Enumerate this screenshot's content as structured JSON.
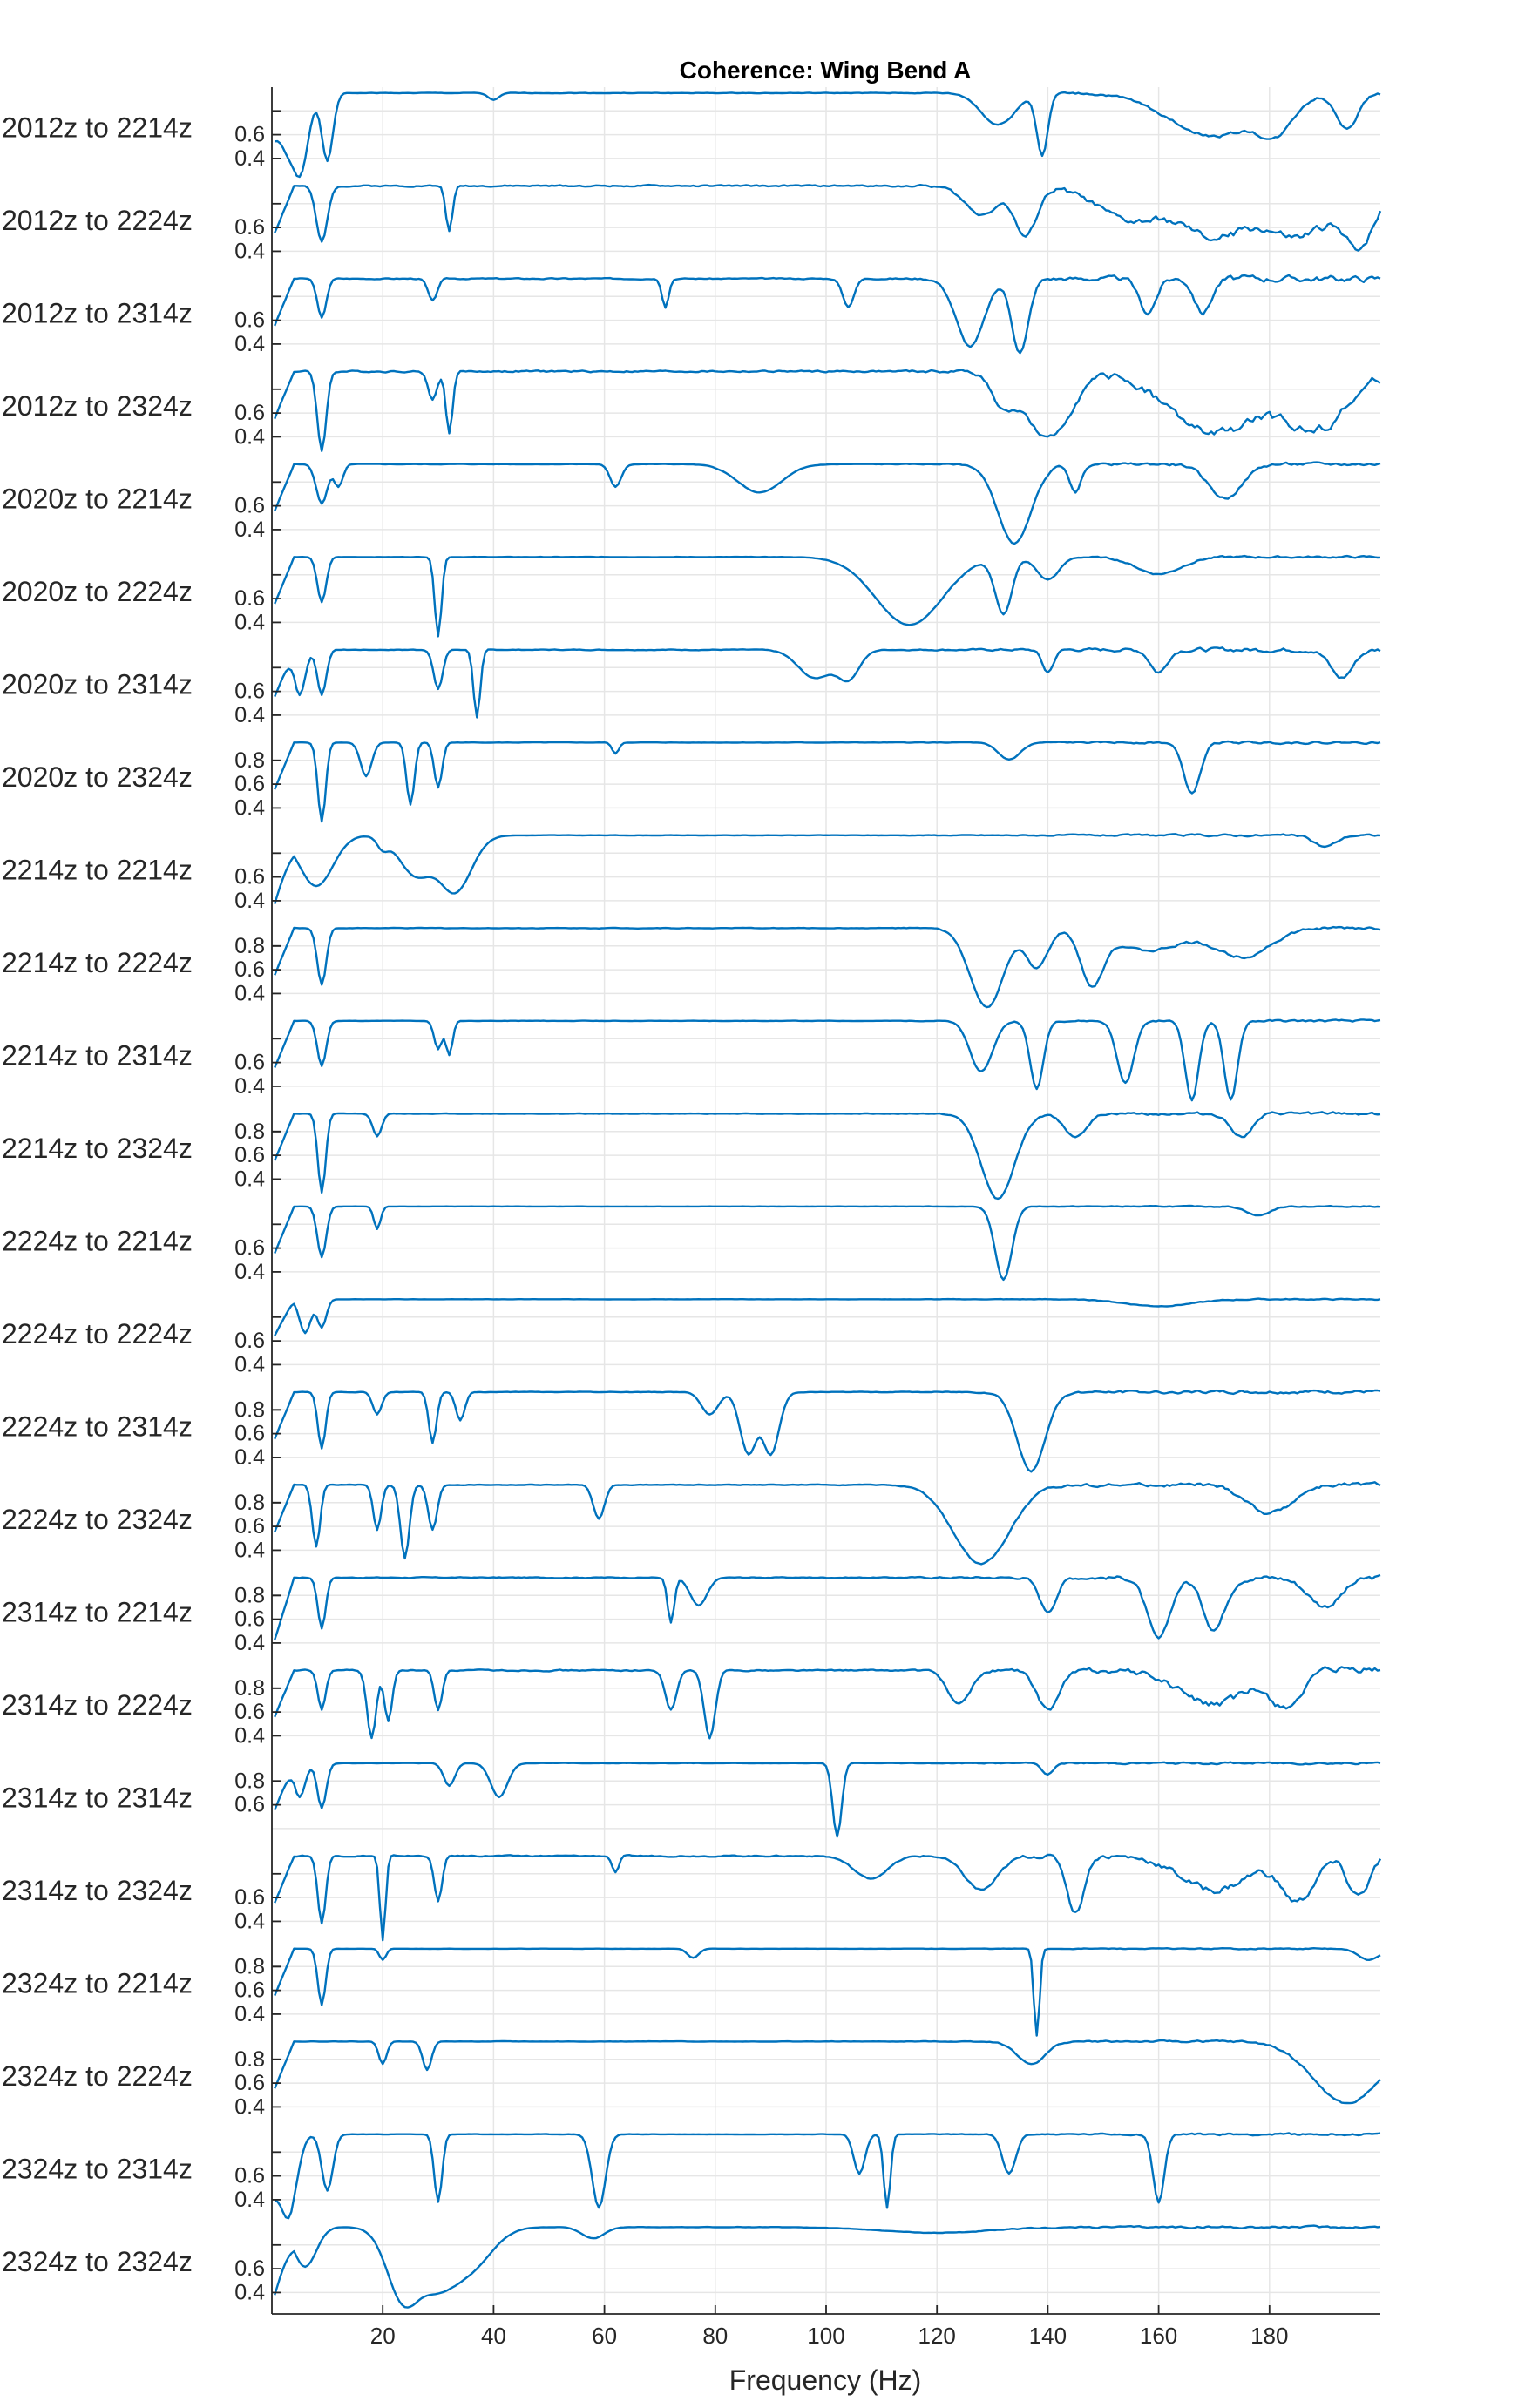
{
  "chart_data": {
    "type": "line",
    "title": "Coherence: Wing Bend A",
    "xlabel": "Frequency (Hz)",
    "xlim": [
      0,
      200
    ],
    "xticks": [
      20,
      40,
      60,
      80,
      100,
      120,
      140,
      160,
      180
    ],
    "grid": true,
    "color": "#0072bd",
    "series": [
      {
        "name": "2012z to 2214z",
        "ylim": [
          0.22,
          1
        ],
        "yticks": [
          0.4,
          0.6
        ],
        "base": 0.95,
        "lowEnd": 0.55,
        "dips": [
          [
            3,
            0.35,
            1.5
          ],
          [
            5,
            0.7,
            1.5
          ],
          [
            10,
            0.6,
            1
          ],
          [
            40,
            0.06,
            1
          ],
          [
            131,
            0.28,
            3
          ],
          [
            139,
            0.55,
            1
          ],
          [
            170,
            0.38,
            8
          ],
          [
            181,
            0.3,
            3
          ],
          [
            194,
            0.3,
            2
          ]
        ],
        "noise": 0.03
      },
      {
        "name": "2012z to 2224z",
        "ylim": [
          0.22,
          1
        ],
        "yticks": [
          0.4,
          0.6
        ],
        "base": 0.95,
        "lowEnd": 0.5,
        "dips": [
          [
            9,
            0.5,
            1
          ],
          [
            32,
            0.4,
            0.6
          ],
          [
            128,
            0.25,
            3
          ],
          [
            136,
            0.45,
            2
          ],
          [
            155,
            0.3,
            6
          ],
          [
            170,
            0.45,
            6
          ],
          [
            185,
            0.45,
            6
          ],
          [
            196,
            0.5,
            3
          ]
        ],
        "noise": 0.08
      },
      {
        "name": "2012z to 2314z",
        "ylim": [
          0.22,
          1
        ],
        "yticks": [
          0.4,
          0.6
        ],
        "base": 0.95,
        "lowEnd": 0.5,
        "dips": [
          [
            9,
            0.35,
            0.8
          ],
          [
            29,
            0.2,
            0.8
          ],
          [
            71,
            0.25,
            0.6
          ],
          [
            104,
            0.25,
            1
          ],
          [
            126,
            0.6,
            2.5
          ],
          [
            135,
            0.65,
            1.5
          ],
          [
            158,
            0.3,
            1.5
          ],
          [
            168,
            0.3,
            1.5
          ]
        ],
        "noise": 0.06
      },
      {
        "name": "2012z to 2324z",
        "ylim": [
          0.22,
          1
        ],
        "yticks": [
          0.4,
          0.6
        ],
        "base": 0.95,
        "lowEnd": 0.5,
        "dips": [
          [
            9,
            0.7,
            0.8
          ],
          [
            29,
            0.25,
            0.8
          ],
          [
            32,
            0.55,
            0.6
          ],
          [
            132,
            0.3,
            2
          ],
          [
            140,
            0.6,
            4
          ],
          [
            170,
            0.55,
            8
          ],
          [
            188,
            0.5,
            6
          ]
        ],
        "noise": 0.09
      },
      {
        "name": "2020z to 2214z",
        "ylim": [
          0.22,
          1
        ],
        "yticks": [
          0.4,
          0.6
        ],
        "base": 0.95,
        "lowEnd": 0.5,
        "dips": [
          [
            9,
            0.35,
            1
          ],
          [
            12,
            0.2,
            0.8
          ],
          [
            62,
            0.2,
            1
          ],
          [
            88,
            0.25,
            4
          ],
          [
            134,
            0.7,
            3
          ],
          [
            145,
            0.25,
            1
          ],
          [
            172,
            0.3,
            3
          ]
        ],
        "noise": 0.03
      },
      {
        "name": "2020z to 2224z",
        "ylim": [
          0.22,
          1
        ],
        "yticks": [
          0.4,
          0.6
        ],
        "base": 0.95,
        "lowEnd": 0.5,
        "dips": [
          [
            9,
            0.4,
            0.8
          ],
          [
            30,
            0.7,
            0.6
          ],
          [
            115,
            0.6,
            6
          ],
          [
            132,
            0.5,
            1.5
          ],
          [
            140,
            0.2,
            2
          ],
          [
            160,
            0.15,
            4
          ]
        ],
        "noise": 0.02
      },
      {
        "name": "2020z to 2314z",
        "ylim": [
          0.22,
          1
        ],
        "yticks": [
          0.4,
          0.6
        ],
        "base": 0.95,
        "lowEnd": 0.5,
        "dips": [
          [
            5,
            0.4,
            1
          ],
          [
            9,
            0.4,
            0.8
          ],
          [
            30,
            0.35,
            0.8
          ],
          [
            37,
            0.6,
            0.6
          ],
          [
            98,
            0.25,
            3
          ],
          [
            104,
            0.25,
            2
          ],
          [
            140,
            0.2,
            1
          ],
          [
            160,
            0.2,
            1.5
          ],
          [
            193,
            0.25,
            2
          ]
        ],
        "noise": 0.04
      },
      {
        "name": "2020z to 2324z",
        "ylim": [
          0.22,
          1
        ],
        "yticks": [
          0.4,
          0.6,
          0.8
        ],
        "base": 0.95,
        "lowEnd": 0.5,
        "dips": [
          [
            9,
            0.7,
            0.7
          ],
          [
            17,
            0.3,
            1
          ],
          [
            25,
            0.55,
            0.7
          ],
          [
            30,
            0.4,
            0.7
          ],
          [
            62,
            0.1,
            0.6
          ],
          [
            133,
            0.15,
            2
          ],
          [
            166,
            0.45,
            1.5
          ]
        ],
        "noise": 0.02
      },
      {
        "name": "2214z to 2214z",
        "ylim": [
          0.22,
          1
        ],
        "yticks": [
          0.4,
          0.6
        ],
        "base": 0.95,
        "lowEnd": 0.3,
        "dips": [
          [
            8,
            0.45,
            3
          ],
          [
            20,
            0.1,
            1
          ],
          [
            26,
            0.35,
            3
          ],
          [
            33,
            0.5,
            3
          ],
          [
            190,
            0.1,
            2
          ]
        ],
        "noise": 0.02
      },
      {
        "name": "2214z to 2224z",
        "ylim": [
          0.22,
          1
        ],
        "yticks": [
          0.4,
          0.6,
          0.8
        ],
        "base": 0.95,
        "lowEnd": 0.5,
        "dips": [
          [
            9,
            0.5,
            0.8
          ],
          [
            129,
            0.7,
            3
          ],
          [
            138,
            0.35,
            2
          ],
          [
            148,
            0.5,
            2
          ],
          [
            158,
            0.2,
            6
          ],
          [
            175,
            0.25,
            5
          ]
        ],
        "noise": 0.03
      },
      {
        "name": "2214z to 2314z",
        "ylim": [
          0.22,
          1
        ],
        "yticks": [
          0.4,
          0.6
        ],
        "base": 0.95,
        "lowEnd": 0.5,
        "dips": [
          [
            9,
            0.4,
            0.8
          ],
          [
            30,
            0.25,
            0.7
          ],
          [
            32,
            0.3,
            0.6
          ],
          [
            128,
            0.45,
            2
          ],
          [
            138,
            0.6,
            1.2
          ],
          [
            154,
            0.55,
            1.5
          ],
          [
            166,
            0.7,
            1.2
          ],
          [
            173,
            0.7,
            1.2
          ]
        ],
        "noise": 0.02
      },
      {
        "name": "2214z to 2324z",
        "ylim": [
          0.22,
          1
        ],
        "yticks": [
          0.4,
          0.6,
          0.8
        ],
        "base": 0.95,
        "lowEnd": 0.5,
        "dips": [
          [
            9,
            0.7,
            0.7
          ],
          [
            19,
            0.2,
            0.8
          ],
          [
            131,
            0.75,
            3
          ],
          [
            145,
            0.2,
            2
          ],
          [
            175,
            0.2,
            2
          ]
        ],
        "noise": 0.03
      },
      {
        "name": "2224z to 2214z",
        "ylim": [
          0.22,
          1
        ],
        "yticks": [
          0.4,
          0.6
        ],
        "base": 0.95,
        "lowEnd": 0.5,
        "dips": [
          [
            9,
            0.45,
            0.8
          ],
          [
            19,
            0.2,
            0.6
          ],
          [
            132,
            0.65,
            1.5
          ],
          [
            178,
            0.08,
            2
          ]
        ],
        "noise": 0.01
      },
      {
        "name": "2224z to 2224z",
        "ylim": [
          0.22,
          1
        ],
        "yticks": [
          0.4,
          0.6
        ],
        "base": 0.95,
        "lowEnd": 0.6,
        "dips": [
          [
            6,
            0.3,
            1
          ],
          [
            9,
            0.25,
            0.8
          ],
          [
            160,
            0.06,
            6
          ]
        ],
        "noise": 0.01
      },
      {
        "name": "2224z to 2314z",
        "ylim": [
          0.22,
          1
        ],
        "yticks": [
          0.4,
          0.6,
          0.8
        ],
        "base": 0.95,
        "lowEnd": 0.5,
        "dips": [
          [
            9,
            0.5,
            0.7
          ],
          [
            19,
            0.2,
            0.8
          ],
          [
            29,
            0.45,
            0.7
          ],
          [
            34,
            0.25,
            0.8
          ],
          [
            79,
            0.2,
            1.5
          ],
          [
            86,
            0.55,
            1.5
          ],
          [
            90,
            0.55,
            1.5
          ],
          [
            137,
            0.7,
            2.5
          ]
        ],
        "noise": 0.03
      },
      {
        "name": "2224z to 2324z",
        "ylim": [
          0.22,
          1
        ],
        "yticks": [
          0.4,
          0.6,
          0.8
        ],
        "base": 0.95,
        "lowEnd": 0.5,
        "dips": [
          [
            8,
            0.55,
            0.7
          ],
          [
            19,
            0.4,
            0.7
          ],
          [
            24,
            0.65,
            0.8
          ],
          [
            29,
            0.4,
            0.8
          ],
          [
            59,
            0.3,
            1
          ],
          [
            128,
            0.7,
            5
          ],
          [
            180,
            0.25,
            4
          ]
        ],
        "noise": 0.04
      },
      {
        "name": "2314z to 2214z",
        "ylim": [
          0.22,
          1
        ],
        "yticks": [
          0.4,
          0.6,
          0.8
        ],
        "base": 0.95,
        "lowEnd": 0.35,
        "dips": [
          [
            9,
            0.45,
            0.7
          ],
          [
            72,
            0.4,
            0.6
          ],
          [
            77,
            0.25,
            1.5
          ],
          [
            140,
            0.3,
            1.5
          ],
          [
            160,
            0.55,
            2
          ],
          [
            170,
            0.45,
            2
          ],
          [
            190,
            0.25,
            3
          ]
        ],
        "noise": 0.05
      },
      {
        "name": "2314z to 2224z",
        "ylim": [
          0.22,
          1
        ],
        "yticks": [
          0.4,
          0.6,
          0.8
        ],
        "base": 0.95,
        "lowEnd": 0.5,
        "dips": [
          [
            9,
            0.35,
            0.7
          ],
          [
            18,
            0.6,
            0.8
          ],
          [
            21,
            0.45,
            0.7
          ],
          [
            30,
            0.35,
            0.7
          ],
          [
            72,
            0.35,
            1
          ],
          [
            79,
            0.6,
            1
          ],
          [
            124,
            0.3,
            2
          ],
          [
            140,
            0.35,
            2
          ],
          [
            170,
            0.3,
            6
          ],
          [
            183,
            0.3,
            3
          ]
        ],
        "noise": 0.07
      },
      {
        "name": "2314z to 2314z",
        "ylim": [
          0.22,
          1
        ],
        "yticks": [
          0.6,
          0.8
        ],
        "base": 0.95,
        "lowEnd": 0.5,
        "dips": [
          [
            5,
            0.3,
            1
          ],
          [
            9,
            0.4,
            0.8
          ],
          [
            32,
            0.2,
            1
          ],
          [
            41,
            0.3,
            1.5
          ],
          [
            102,
            0.65,
            0.8
          ],
          [
            140,
            0.1,
            1
          ]
        ],
        "noise": 0.02
      },
      {
        "name": "2314z to 2324z",
        "ylim": [
          0.22,
          1
        ],
        "yticks": [
          0.4,
          0.6
        ],
        "base": 0.95,
        "lowEnd": 0.5,
        "dips": [
          [
            9,
            0.6,
            0.7
          ],
          [
            20,
            0.75,
            0.5
          ],
          [
            30,
            0.4,
            0.7
          ],
          [
            62,
            0.15,
            0.6
          ],
          [
            108,
            0.2,
            3
          ],
          [
            128,
            0.3,
            3
          ],
          [
            145,
            0.5,
            1.5
          ],
          [
            170,
            0.3,
            6
          ],
          [
            185,
            0.4,
            3
          ],
          [
            196,
            0.35,
            2
          ]
        ],
        "noise": 0.07
      },
      {
        "name": "2324z to 2214z",
        "ylim": [
          0.22,
          1
        ],
        "yticks": [
          0.4,
          0.6,
          0.8
        ],
        "base": 0.95,
        "lowEnd": 0.5,
        "dips": [
          [
            9,
            0.5,
            0.7
          ],
          [
            20,
            0.1,
            0.6
          ],
          [
            76,
            0.08,
            1
          ],
          [
            138,
            0.8,
            0.5
          ],
          [
            198,
            0.1,
            2
          ]
        ],
        "noise": 0.01
      },
      {
        "name": "2324z to 2224z",
        "ylim": [
          0.22,
          1
        ],
        "yticks": [
          0.4,
          0.6,
          0.8
        ],
        "base": 0.95,
        "lowEnd": 0.5,
        "dips": [
          [
            20,
            0.2,
            0.7
          ],
          [
            28,
            0.25,
            0.8
          ],
          [
            137,
            0.2,
            2.5
          ],
          [
            194,
            0.55,
            6
          ]
        ],
        "noise": 0.02
      },
      {
        "name": "2324z to 2314z",
        "ylim": [
          0.22,
          1
        ],
        "yticks": [
          0.4,
          0.6
        ],
        "base": 0.95,
        "lowEnd": 0.4,
        "dips": [
          [
            3,
            0.7,
            1.5
          ],
          [
            10,
            0.5,
            1
          ],
          [
            30,
            0.6,
            0.7
          ],
          [
            59,
            0.65,
            1.2
          ],
          [
            106,
            0.35,
            1
          ],
          [
            111,
            0.65,
            0.6
          ],
          [
            133,
            0.35,
            1.2
          ],
          [
            160,
            0.6,
            1
          ]
        ],
        "noise": 0.02
      },
      {
        "name": "2324z to 2324z",
        "ylim": [
          0.22,
          1
        ],
        "yticks": [
          0.4,
          0.6
        ],
        "base": 0.95,
        "lowEnd": 0.3,
        "dips": [
          [
            6,
            0.35,
            2
          ],
          [
            24,
            0.65,
            3
          ],
          [
            30,
            0.5,
            4
          ],
          [
            36,
            0.3,
            4
          ],
          [
            58,
            0.1,
            2
          ],
          [
            120,
            0.05,
            10
          ]
        ],
        "noise": 0.02
      }
    ]
  }
}
